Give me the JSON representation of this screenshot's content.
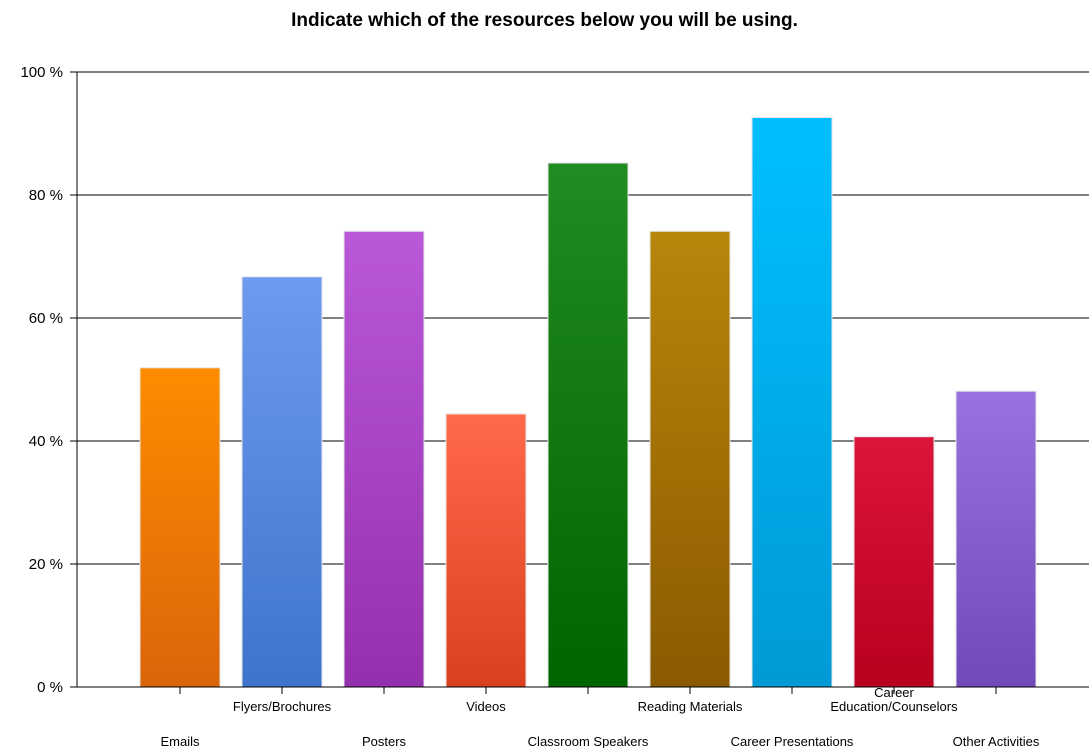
{
  "chart_data": {
    "type": "bar",
    "title": "Indicate which of the resources below you will be using.",
    "xlabel": "",
    "ylabel": "",
    "ylim": [
      0,
      100
    ],
    "yticks": [
      0,
      20,
      40,
      60,
      80,
      100
    ],
    "ytick_labels": [
      "0 %",
      "20 %",
      "40 %",
      "60 %",
      "80 %",
      "100 %"
    ],
    "grid": true,
    "categories": [
      "Emails",
      "Flyers/Brochures",
      "Posters",
      "Videos",
      "Classroom Speakers",
      "Reading Materials",
      "Career Presentations",
      "Career Education/Counselors",
      "Other Activities"
    ],
    "category_label_lines": [
      [
        "Emails"
      ],
      [
        "Flyers/Brochures"
      ],
      [
        "Posters"
      ],
      [
        "Videos"
      ],
      [
        "Classroom Speakers"
      ],
      [
        "Reading Materials"
      ],
      [
        "Career Presentations"
      ],
      [
        "Career",
        "Education/Counselors"
      ],
      [
        "Other Activities"
      ]
    ],
    "values": [
      51.9,
      66.7,
      74.1,
      44.4,
      85.2,
      74.1,
      92.6,
      40.7,
      48.1
    ],
    "colors": [
      [
        "#ff8c00",
        "#d9650a"
      ],
      [
        "#6e9af0",
        "#3f74cc"
      ],
      [
        "#bb58d8",
        "#9430ad"
      ],
      [
        "#ff6a4a",
        "#d9401f"
      ],
      [
        "#228b22",
        "#006400"
      ],
      [
        "#b8860b",
        "#8b5a00"
      ],
      [
        "#00bfff",
        "#009ad6"
      ],
      [
        "#dc143c",
        "#b8001e"
      ],
      [
        "#9a72e0",
        "#6f4ab8"
      ]
    ]
  }
}
